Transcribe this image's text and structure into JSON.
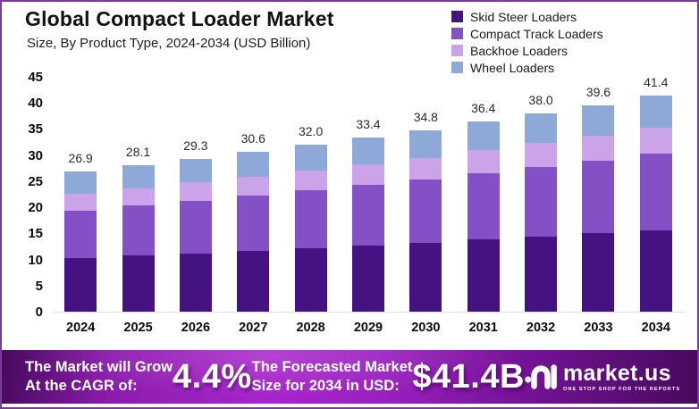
{
  "header": {
    "title": "Global Compact Loader Market",
    "subtitle": "Size, By Product Type, 2024-2034 (USD Billion)"
  },
  "chart_data": {
    "type": "bar",
    "stacked": true,
    "title": "Global Compact Loader Market Size, By Product Type, 2024-2034 (USD Billion)",
    "categories": [
      "2024",
      "2025",
      "2026",
      "2027",
      "2028",
      "2029",
      "2030",
      "2031",
      "2032",
      "2033",
      "2034"
    ],
    "series": [
      {
        "name": "Skid Steer Loaders",
        "color": "#451282",
        "values": [
          10.2,
          10.7,
          11.1,
          11.6,
          12.1,
          12.6,
          13.2,
          13.8,
          14.4,
          15.0,
          15.6
        ]
      },
      {
        "name": "Compact Track Loaders",
        "color": "#8450c6",
        "values": [
          9.2,
          9.7,
          10.2,
          10.7,
          11.2,
          11.7,
          12.2,
          12.8,
          13.4,
          14.0,
          14.7
        ]
      },
      {
        "name": "Backhoe Loaders",
        "color": "#caa3e9",
        "values": [
          3.2,
          3.3,
          3.5,
          3.6,
          3.8,
          4.0,
          4.1,
          4.3,
          4.5,
          4.7,
          4.9
        ]
      },
      {
        "name": "Wheel Loaders",
        "color": "#8ea9d8",
        "values": [
          4.3,
          4.4,
          4.5,
          4.7,
          4.9,
          5.1,
          5.3,
          5.5,
          5.7,
          5.9,
          6.2
        ]
      }
    ],
    "totals": [
      26.9,
      28.1,
      29.3,
      30.6,
      32.0,
      33.4,
      34.8,
      36.4,
      38.0,
      39.6,
      41.4
    ],
    "total_labels": [
      "26.9",
      "28.1",
      "29.3",
      "30.6",
      "32.0",
      "33.4",
      "34.8",
      "36.4",
      "38.0",
      "39.6",
      "41.4"
    ],
    "ylim": [
      0,
      45
    ],
    "yticks": [
      0,
      5,
      10,
      15,
      20,
      25,
      30,
      35,
      40,
      45
    ],
    "grid": false,
    "legend_position": "top-right"
  },
  "footer": {
    "cagr_label_lines": [
      "The Market will Grow",
      "At the CAGR of:"
    ],
    "cagr_value": "4.4%",
    "forecast_label_lines": [
      "The Forecasted Market",
      "Size for 2034 in USD:"
    ],
    "forecast_value": "$41.4B",
    "brand": {
      "name": "market.us",
      "tagline": "ONE STOP SHOP FOR THE REPORTS"
    }
  },
  "colors": {
    "frame_border": "#7b3a99",
    "banner_purple": "#a824cb",
    "axis_line": "#e2dde9",
    "text_dark": "#121212"
  }
}
